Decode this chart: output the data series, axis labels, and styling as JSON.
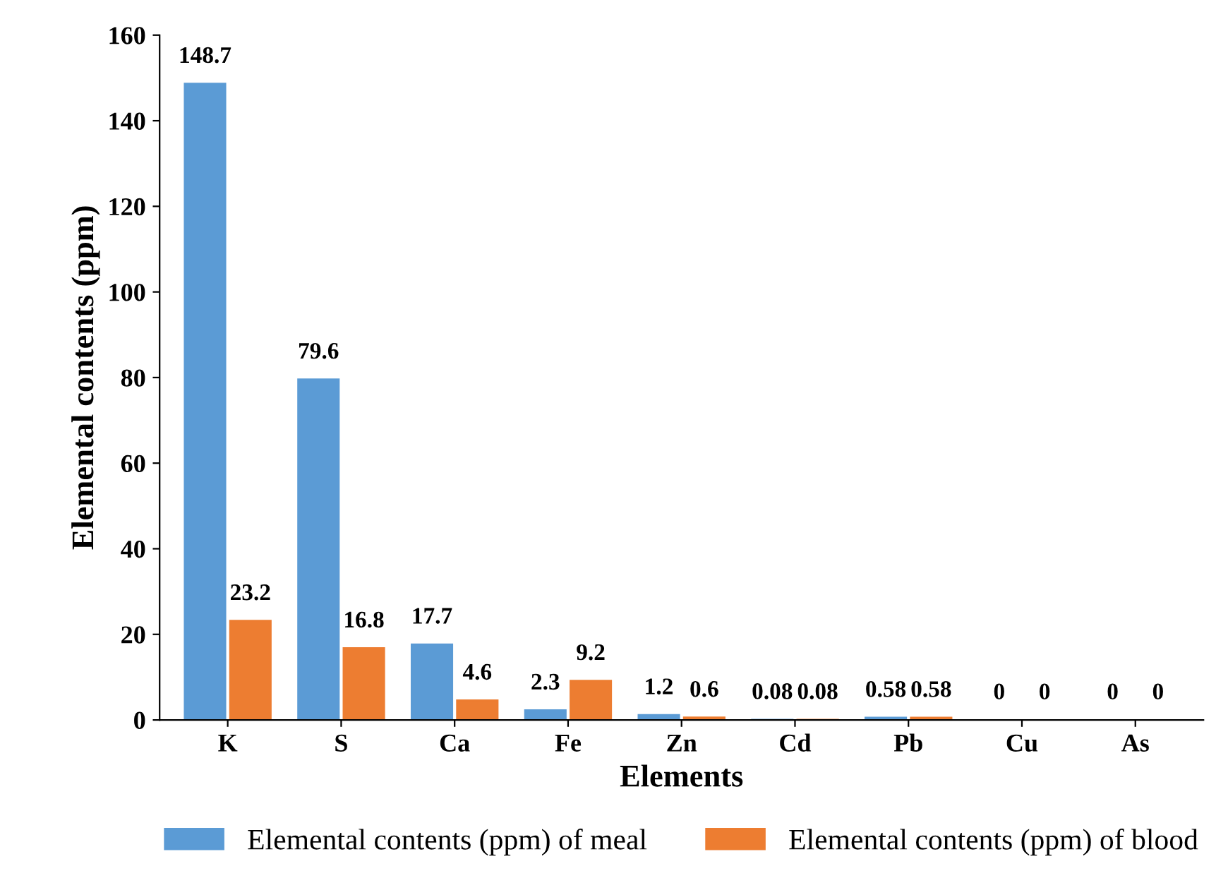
{
  "chart_data": {
    "type": "bar",
    "xlabel": "Elements",
    "ylabel": "Elemental contents (ppm)",
    "categories": [
      "K",
      "S",
      "Ca",
      "Fe",
      "Zn",
      "Cd",
      "Pb",
      "Cu",
      "As"
    ],
    "series": [
      {
        "name": "Elemental contents (ppm) of meal",
        "color": "#5b9bd5",
        "values": [
          148.7,
          79.6,
          17.7,
          2.3,
          1.2,
          0.08,
          0.58,
          0,
          0
        ]
      },
      {
        "name": "Elemental contents (ppm) of blood",
        "color": "#ed7d31",
        "values": [
          23.2,
          16.8,
          4.6,
          9.2,
          0.6,
          0.08,
          0.58,
          0,
          0
        ]
      }
    ],
    "ylim": [
      0,
      160
    ],
    "yticks": [
      0,
      20,
      40,
      60,
      80,
      100,
      120,
      140,
      160
    ],
    "grid": false,
    "legend": "bottom",
    "data_labels": true
  }
}
